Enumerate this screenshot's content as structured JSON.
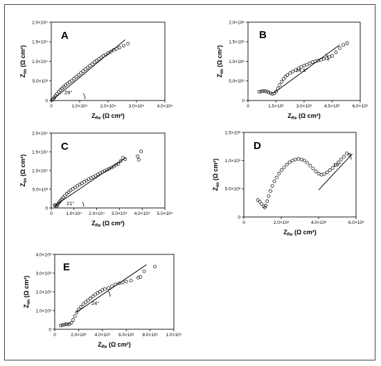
{
  "chart_data": [
    {
      "type": "scatter",
      "panel": "A",
      "xlim": [
        0,
        40000
      ],
      "ylim": [
        0,
        20000
      ],
      "xticks": [
        "0",
        "1.0×10⁴",
        "2.0×10⁴",
        "3.0×10⁴",
        "4.0×10⁴"
      ],
      "yticks": [
        "0",
        "5.0×10³",
        "1.0×10⁴",
        "1.5×10⁴",
        "2.0×10⁴"
      ],
      "xlabel": "ZRe (Ω cm²)",
      "ylabel": "Zim (Ω cm²)",
      "angle_label": "29°",
      "x": [
        300,
        700,
        1100,
        1500,
        2000,
        2600,
        3200,
        3800,
        4400,
        5000,
        5700,
        6400,
        7200,
        8000,
        8800,
        9600,
        10400,
        11200,
        12000,
        12800,
        13600,
        14400,
        15200,
        16000,
        16800,
        17600,
        18400,
        19200,
        20000,
        21000,
        22000,
        23000,
        24000,
        25500,
        27000
      ],
      "y": [
        100,
        400,
        800,
        1200,
        1700,
        2200,
        2700,
        3100,
        3500,
        3900,
        4300,
        4700,
        5100,
        5600,
        6100,
        6500,
        7000,
        7500,
        8000,
        8400,
        8900,
        9300,
        9800,
        10200,
        10600,
        11000,
        11400,
        11700,
        12100,
        12500,
        12900,
        13200,
        13500,
        14000,
        14500
      ],
      "fit_line": {
        "x": [
          1000,
          26000
        ],
        "y": [
          500,
          15500
        ]
      }
    },
    {
      "type": "scatter",
      "panel": "B",
      "xlim": [
        0,
        6000000
      ],
      "ylim": [
        0,
        2000000
      ],
      "xticks": [
        "0",
        "1.5×10⁶",
        "3.0×10⁶",
        "4.5×10⁶",
        "6.0×10⁶"
      ],
      "yticks": [
        "0",
        "5.0×10⁵",
        "1.0×10⁶",
        "1.5×10⁶",
        "2.0×10⁶"
      ],
      "xlabel": "ZRe (Ω cm²)",
      "ylabel": "Zim (Ω cm²)",
      "angle_label": "24.5°",
      "x": [
        600000,
        700000,
        800000,
        900000,
        1000000,
        1100000,
        1200000,
        1300000,
        1400000,
        1500000,
        1600000,
        1700000,
        1800000,
        1900000,
        2000000,
        2100000,
        2250000,
        2400000,
        2550000,
        2700000,
        2850000,
        3000000,
        3150000,
        3300000,
        3450000,
        3600000,
        3750000,
        3900000,
        4050000,
        4200000,
        4350000,
        4500000,
        4700000,
        4900000,
        5100000,
        5300000
      ],
      "y": [
        220000,
        230000,
        240000,
        240000,
        230000,
        210000,
        190000,
        170000,
        180000,
        230000,
        310000,
        400000,
        480000,
        550000,
        610000,
        650000,
        700000,
        740000,
        780000,
        820000,
        860000,
        890000,
        920000,
        950000,
        980000,
        1000000,
        1020000,
        1040000,
        1060000,
        1080000,
        1110000,
        1140000,
        1230000,
        1340000,
        1420000,
        1460000
      ],
      "fit_line": {
        "x": [
          1400000,
          4900000
        ],
        "y": [
          200000,
          1420000
        ]
      }
    },
    {
      "type": "scatter",
      "panel": "C",
      "xlim": [
        0,
        50000
      ],
      "ylim": [
        0,
        20000
      ],
      "xticks": [
        "0",
        "1.0×10⁴",
        "2.0×10⁴",
        "3.0×10⁴",
        "4.0×10⁴",
        "5.0×10⁴"
      ],
      "yticks": [
        "0",
        "5.0×10³",
        "1.0×10⁴",
        "1.5×10⁴",
        "2.0×10⁴"
      ],
      "xlabel": "ZRe (Ω cm²)",
      "ylabel": "Zim (Ω cm²)",
      "angle_label": "21°",
      "x": [
        1500,
        1800,
        2200,
        2600,
        3000,
        3500,
        4000,
        4600,
        5200,
        6000,
        6800,
        7600,
        8500,
        9500,
        10500,
        11500,
        12500,
        13500,
        14500,
        15500,
        16500,
        17500,
        18500,
        19500,
        20500,
        21500,
        22500,
        23500,
        24500,
        25500,
        26500,
        27500,
        28500,
        29500,
        30500,
        31500,
        32500,
        38000,
        39500,
        38500
      ],
      "y": [
        800,
        600,
        400,
        700,
        1100,
        1500,
        1900,
        2300,
        2800,
        3300,
        3800,
        4200,
        4700,
        5100,
        5500,
        5900,
        6300,
        6600,
        7000,
        7300,
        7700,
        8000,
        8300,
        8600,
        9000,
        9300,
        9600,
        9900,
        10200,
        10500,
        10800,
        11100,
        11500,
        11800,
        12500,
        13400,
        13000,
        13800,
        15100,
        12900
      ],
      "fit_line": {
        "x": [
          2000,
          33000
        ],
        "y": [
          800,
          13500
        ]
      }
    },
    {
      "type": "scatter",
      "panel": "D",
      "xlim": [
        0,
        6000
      ],
      "ylim": [
        0,
        1500
      ],
      "xticks": [
        "0",
        "2.0×10³",
        "4.0×10³",
        "6.0×10³"
      ],
      "yticks": [
        "0",
        "5.0×10²",
        "1.0×10³",
        "1.5×10³"
      ],
      "xlabel": "ZRe (Ω cm²)",
      "ylabel": "Zim (Ω cm²)",
      "angle_label": "19°",
      "x": [
        750,
        850,
        950,
        1050,
        1120,
        1180,
        1250,
        1330,
        1420,
        1520,
        1630,
        1750,
        1880,
        2010,
        2150,
        2300,
        2450,
        2600,
        2760,
        2920,
        3080,
        3240,
        3400,
        3550,
        3700,
        3850,
        4000,
        4150,
        4300,
        4450,
        4600,
        4750,
        4900,
        5050,
        5200,
        5350,
        5500,
        5650
      ],
      "y": [
        300,
        270,
        230,
        190,
        170,
        200,
        280,
        370,
        460,
        550,
        630,
        700,
        770,
        830,
        880,
        930,
        970,
        1000,
        1020,
        1030,
        1020,
        1000,
        960,
        910,
        860,
        810,
        770,
        750,
        760,
        790,
        830,
        870,
        920,
        970,
        1020,
        1070,
        1130,
        1100
      ],
      "fit_line": {
        "x": [
          4000,
          5800
        ],
        "y": [
          480,
          1120
        ]
      }
    },
    {
      "type": "scatter",
      "panel": "E",
      "xlim": [
        0,
        10000
      ],
      "ylim": [
        0,
        4000
      ],
      "xticks": [
        "0",
        "2.0×10³",
        "4.0×10³",
        "6.0×10³",
        "8.0×10³",
        "1.0×10⁴"
      ],
      "yticks": [
        "0",
        "1.0×10³",
        "2.0×10³",
        "3.0×10³",
        "4.0×10³"
      ],
      "xlabel": "ZRe (Ω cm²)",
      "ylabel": "Zim (Ω cm²)",
      "angle_label": "24°",
      "x": [
        500,
        650,
        800,
        950,
        1100,
        1250,
        1400,
        1550,
        1700,
        1850,
        2000,
        2200,
        2400,
        2600,
        2800,
        3000,
        3200,
        3400,
        3600,
        3800,
        4000,
        4200,
        4500,
        4800,
        5100,
        5400,
        5700,
        6000,
        6400,
        7000,
        7200,
        7500,
        8400
      ],
      "y": [
        200,
        220,
        250,
        270,
        260,
        280,
        340,
        500,
        700,
        900,
        1050,
        1200,
        1350,
        1450,
        1550,
        1650,
        1750,
        1850,
        1950,
        2000,
        2100,
        2150,
        2200,
        2300,
        2400,
        2450,
        2500,
        2550,
        2600,
        2750,
        2800,
        3100,
        3350
      ],
      "fit_line": {
        "x": [
          1800,
          7700
        ],
        "y": [
          900,
          3450
        ]
      }
    }
  ]
}
